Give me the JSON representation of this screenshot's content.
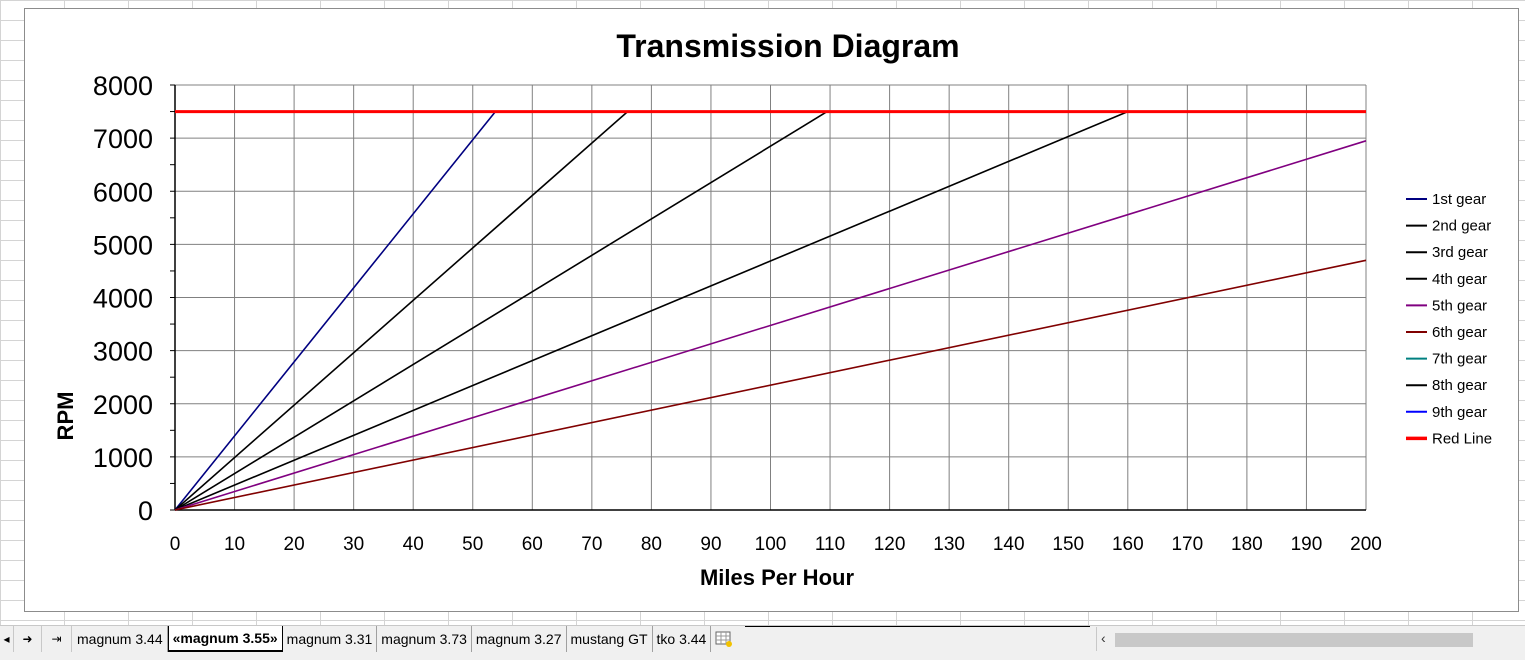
{
  "chart_data": {
    "type": "line",
    "title": "Transmission Diagram",
    "xlabel": "Miles Per Hour",
    "ylabel": "RPM",
    "xlim": [
      0,
      200
    ],
    "ylim": [
      0,
      8000
    ],
    "x_ticks": [
      "0",
      "10",
      "20",
      "30",
      "40",
      "50",
      "60",
      "70",
      "80",
      "90",
      "100",
      "110",
      "120",
      "130",
      "140",
      "150",
      "160",
      "170",
      "180",
      "190",
      "200"
    ],
    "y_ticks": [
      "0",
      "1000",
      "2000",
      "3000",
      "4000",
      "5000",
      "6000",
      "7000",
      "8000"
    ],
    "grid": true,
    "legend_position": "right",
    "series": [
      {
        "name": "1st gear",
        "color": "#000080",
        "points": [
          [
            0,
            0
          ],
          [
            53.8,
            7500
          ]
        ]
      },
      {
        "name": "2nd gear",
        "color": "#000000",
        "points": [
          [
            0,
            0
          ],
          [
            76,
            7500
          ]
        ]
      },
      {
        "name": "3rd gear",
        "color": "#000000",
        "points": [
          [
            0,
            0
          ],
          [
            109.5,
            7500
          ]
        ]
      },
      {
        "name": "4th gear",
        "color": "#000000",
        "points": [
          [
            0,
            0
          ],
          [
            160,
            7500
          ]
        ]
      },
      {
        "name": "5th gear",
        "color": "#800080",
        "points": [
          [
            0,
            0
          ],
          [
            200,
            6950
          ]
        ]
      },
      {
        "name": "6th gear",
        "color": "#800000",
        "points": [
          [
            0,
            0
          ],
          [
            200,
            4700
          ]
        ]
      },
      {
        "name": "7th gear",
        "color": "#008080",
        "points": []
      },
      {
        "name": "8th gear",
        "color": "#000000",
        "points": []
      },
      {
        "name": "9th gear",
        "color": "#0000ff",
        "points": []
      },
      {
        "name": "Red Line",
        "color": "#ff0000",
        "points": [
          [
            0,
            7500
          ],
          [
            200,
            7500
          ]
        ]
      }
    ]
  },
  "sheet_tabs": [
    {
      "label": "magnum 3.44",
      "active": false
    },
    {
      "label": "«magnum 3.55»",
      "active": true
    },
    {
      "label": "magnum 3.31",
      "active": false
    },
    {
      "label": "magnum 3.73",
      "active": false
    },
    {
      "label": "magnum 3.27",
      "active": false
    },
    {
      "label": "mustang GT",
      "active": false
    },
    {
      "label": "tko 3.44",
      "active": false
    }
  ],
  "icons": {
    "prev": "previous-sheet-icon",
    "next": "next-sheet-icon",
    "last": "last-sheet-icon",
    "new_sheet": "new-sheet-icon",
    "scroll_left": "scroll-left-icon"
  }
}
